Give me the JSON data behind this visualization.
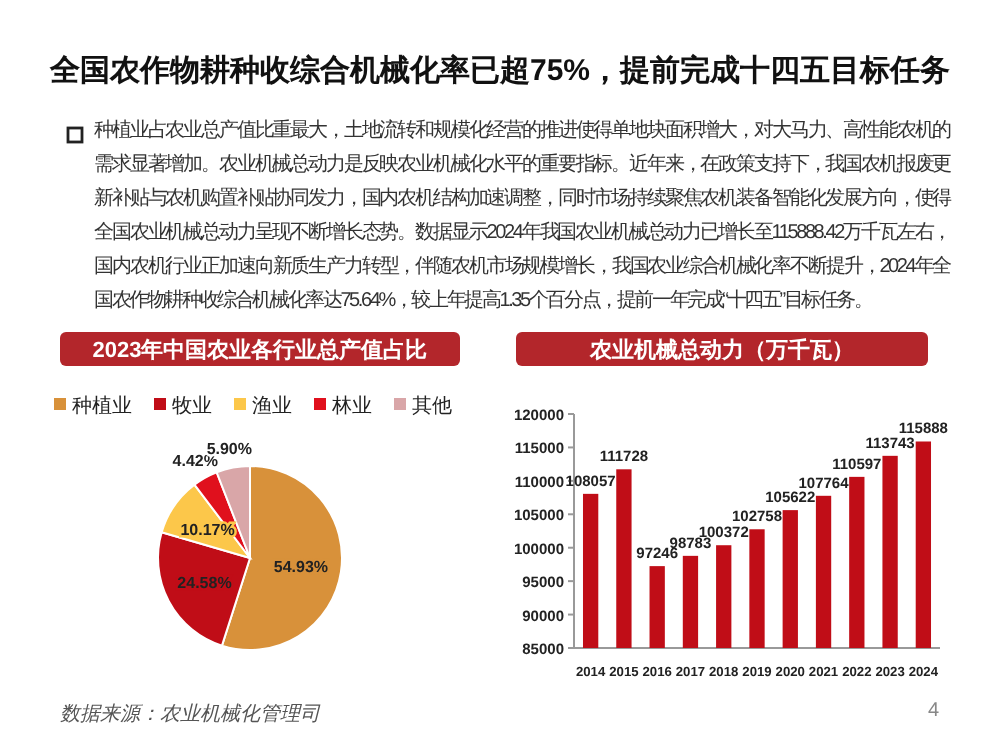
{
  "chart_data": [
    {
      "type": "other",
      "title": "全国农作物耕种收综合机械化率已超75%，提前完成十四五目标任务",
      "annotations": [
        "种植业占农业总产值比重最大，土地流转和规模化经营的推进使得单地块面积增大，对大马力、高性能农机的需求显著增加。农业机械总动力是反映农业机械化水平的重要指标。近年来，在政策支持下，我国农机报废更新补贴与农机购置补贴协同发力，国内农机结构加速调整，同时市场持续聚焦农机装备智能化发展方向，使得全国农业机械总动力呈现不断增长态势。数据显示2024年我国农业机械总动力已增长至115888.42万千瓦左右，国内农机行业正加速向新质生产力转型，伴随农机市场规模增长，我国农业综合机械化率不断提升，2024年全国农作物耕种收综合机械化率达75.64%，较上年提高1.35个百分点，提前一年完成“十四五”目标任务。",
        "数据来源：农业机械化管理司",
        "4"
      ]
    },
    {
      "type": "pie",
      "title": "2023年中国农业各行业总产值占比",
      "legend": "top",
      "categories": [
        "种植业",
        "牧业",
        "渔业",
        "林业",
        "其他"
      ],
      "values": [
        54.93,
        24.58,
        10.17,
        4.42,
        5.9
      ],
      "value_labels": [
        "54.93%",
        "24.58%",
        "10.17%",
        "4.42%",
        "5.90%"
      ],
      "colors": [
        "#d8913a",
        "#c00d17",
        "#fcc74a",
        "#e0101d",
        "#d9a6a8"
      ]
    },
    {
      "type": "bar",
      "title": "农业机械总动力（万千瓦）",
      "color": "#c00d17",
      "data_labels": true,
      "categories": [
        "2014",
        "2015",
        "2016",
        "2017",
        "2018",
        "2019",
        "2020",
        "2021",
        "2022",
        "2023",
        "2024"
      ],
      "values": [
        108057,
        111728,
        97246,
        98783,
        100372,
        102758,
        105622,
        107764,
        110597,
        113743,
        115888
      ],
      "ylim": [
        85000,
        120000
      ],
      "yticks": [
        85000,
        90000,
        95000,
        100000,
        105000,
        110000,
        115000,
        120000
      ]
    }
  ]
}
